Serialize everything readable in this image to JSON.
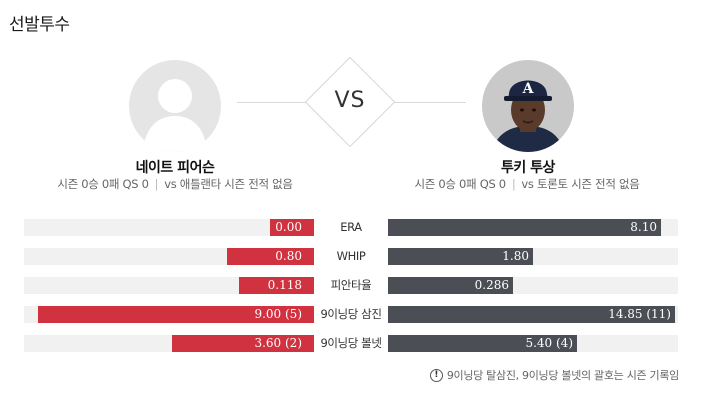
{
  "section_title": "선발투수",
  "vs_label": "VS",
  "away": {
    "name": "네이트 피어슨",
    "season": "시즌 0승 0패 QS 0",
    "vs_record": "vs 애틀랜타 시즌 전적 없음",
    "has_photo": false
  },
  "home": {
    "name": "투키 투상",
    "season": "시즌 0승 0패 QS 0",
    "vs_record": "vs 토론토 시즌 전적 없음",
    "has_photo": true,
    "cap_logo": "A"
  },
  "colors": {
    "away_bar": "#d0323f",
    "home_bar": "#4b4e55",
    "track": "#f1f1f1"
  },
  "stats": [
    {
      "label": "ERA",
      "left": "0.00",
      "right": "8.10",
      "left_fill": 0.15,
      "right_fill": 0.94
    },
    {
      "label": "WHIP",
      "left": "0.80",
      "right": "1.80",
      "left_fill": 0.3,
      "right_fill": 0.5
    },
    {
      "label": "피안타율",
      "left": "0.118",
      "right": "0.286",
      "left_fill": 0.26,
      "right_fill": 0.43
    },
    {
      "label": "9이닝당 삼진",
      "left": "9.00 (5)",
      "right": "14.85 (11)",
      "left_fill": 0.95,
      "right_fill": 0.99
    },
    {
      "label": "9이닝당 볼넷",
      "left": "3.60 (2)",
      "right": "5.40 (4)",
      "left_fill": 0.49,
      "right_fill": 0.65
    }
  ],
  "footnote": "9이닝당 탈삼진, 9이닝당 볼넷의 괄호는 시즌 기록임",
  "footnote_icon": "info-icon"
}
